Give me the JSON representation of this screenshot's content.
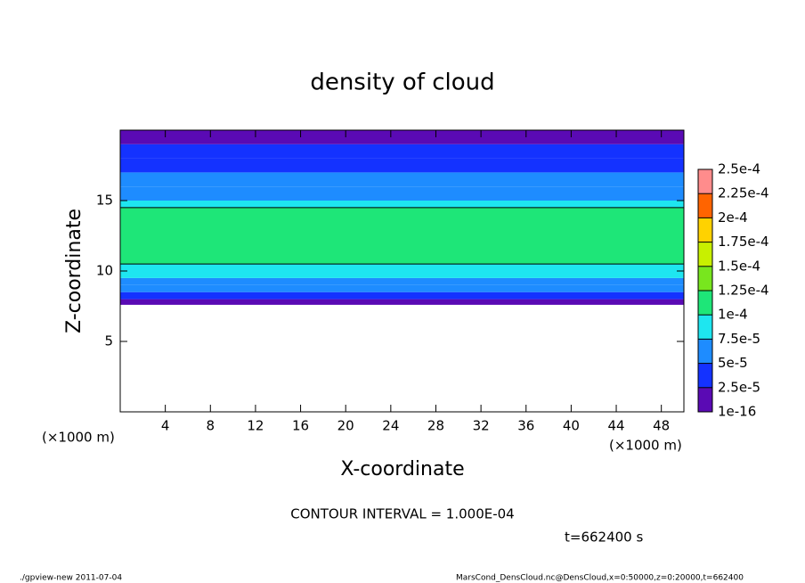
{
  "chart_data": {
    "type": "profile-heatmap",
    "title": "density of cloud",
    "x_label": "X-coordinate",
    "y_label": "Z-coordinate",
    "x_unit_left": "(×1000 m)",
    "x_unit_right": "(×1000 m)",
    "xlim": [
      0,
      50
    ],
    "xticks": [
      4,
      8,
      12,
      16,
      20,
      24,
      28,
      32,
      36,
      40,
      44,
      48
    ],
    "ylim": [
      0,
      20
    ],
    "yticks": [
      5,
      10,
      15
    ],
    "ybins": [
      7.6,
      8,
      8.5,
      9,
      9.5,
      10.5,
      14.5,
      15,
      16,
      17,
      18,
      19,
      20
    ],
    "values": [
      1e-05,
      3e-05,
      5e-05,
      7e-05,
      9e-05,
      0.00012,
      9e-05,
      7e-05,
      5.5e-05,
      4e-05,
      3e-05,
      1.5e-05
    ],
    "colorbar_ticks": [
      1e-16,
      {
        "value": 2.5e-05,
        "label": "2.5e-5"
      },
      {
        "value": 5e-05,
        "label": "5e-5"
      },
      {
        "value": 7.5e-05,
        "label": "7.5e-5"
      },
      {
        "value": 0.0001,
        "label": "1e-4"
      },
      {
        "value": 0.000125,
        "label": "1.25e-4"
      },
      {
        "value": 0.00015,
        "label": "1.5e-4"
      },
      {
        "value": 0.000175,
        "label": "1.75e-4"
      },
      {
        "value": 0.0002,
        "label": "2e-4"
      },
      {
        "value": 0.000225,
        "label": "2.25e-4"
      },
      {
        "value": 0.00025,
        "label": "2.5e-4"
      }
    ],
    "colors": [
      "#5a0ab4",
      "#1432ff",
      "#1e8cff",
      "#1ee6f0",
      "#1ee678",
      "#78e61e",
      "#c8f000",
      "#ffd200",
      "#ff6400",
      "#ff8c8c"
    ],
    "contour_note": "CONTOUR INTERVAL = 1.000E-04",
    "time_note": "t=662400 s",
    "footer_left": "./gpview-new  2011-07-04",
    "footer_right": "MarsCond_DensCloud.nc@DensCloud,x=0:50000,z=0:20000,t=662400"
  }
}
